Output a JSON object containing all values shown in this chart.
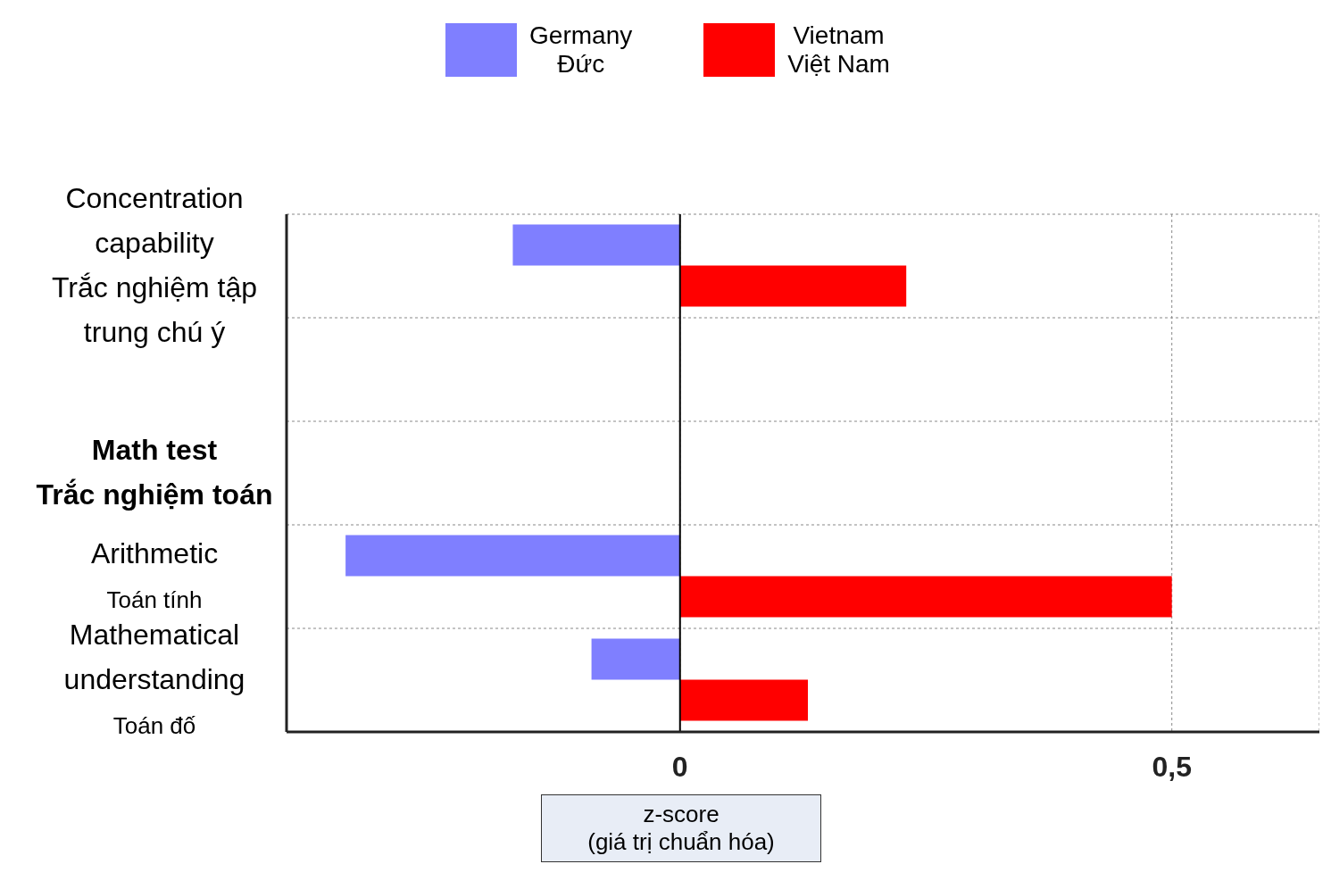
{
  "chart_data": {
    "type": "bar",
    "orientation": "horizontal",
    "categories": [
      "Concentration\ncapability\nTrắc nghiệm tập\ntrung chú ý",
      null,
      "Math test\nTrắc nghiệm toán",
      "Arithmetic\nToán tính",
      "Mathematical\nunderstanding\nToán đố"
    ],
    "series": [
      {
        "name": "Germany\nĐức",
        "color": "#7f7fff",
        "values": [
          -0.17,
          null,
          null,
          -0.34,
          -0.09
        ]
      },
      {
        "name": "Vietnam\nViệt Nam",
        "color": "#ff0000",
        "values": [
          0.23,
          null,
          null,
          0.5,
          0.13
        ]
      }
    ],
    "xlim": [
      -0.4,
      0.65
    ],
    "xticks": [
      {
        "value": 0,
        "label": "0"
      },
      {
        "value": 0.5,
        "label": "0,5"
      }
    ],
    "xlabel": "z-score\n(giá trị chuẩn hóa)",
    "ref_lines": [
      {
        "axis": "x",
        "value": 0,
        "color": "#000000"
      }
    ],
    "grid": true,
    "legend": "top"
  }
}
